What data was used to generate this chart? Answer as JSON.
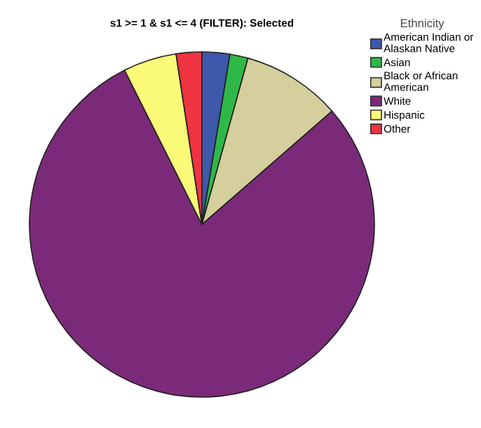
{
  "chart_data": {
    "type": "pie",
    "title": "s1 >= 1 & s1 <= 4 (FILTER): Selected",
    "legend_title": "Ethnicity",
    "legend": "top right",
    "categories": [
      "American Indian or\nAlaskan Native",
      "Asian",
      "Black or African\nAmerican",
      "White",
      "Hispanic",
      "Other"
    ],
    "values": [
      2.6,
      1.7,
      9.3,
      79.0,
      5.0,
      2.4
    ],
    "colors": [
      "#3e58ac",
      "#2eb848",
      "#d4cf9c",
      "#7b2a7a",
      "#fafa78",
      "#ef3340"
    ]
  }
}
